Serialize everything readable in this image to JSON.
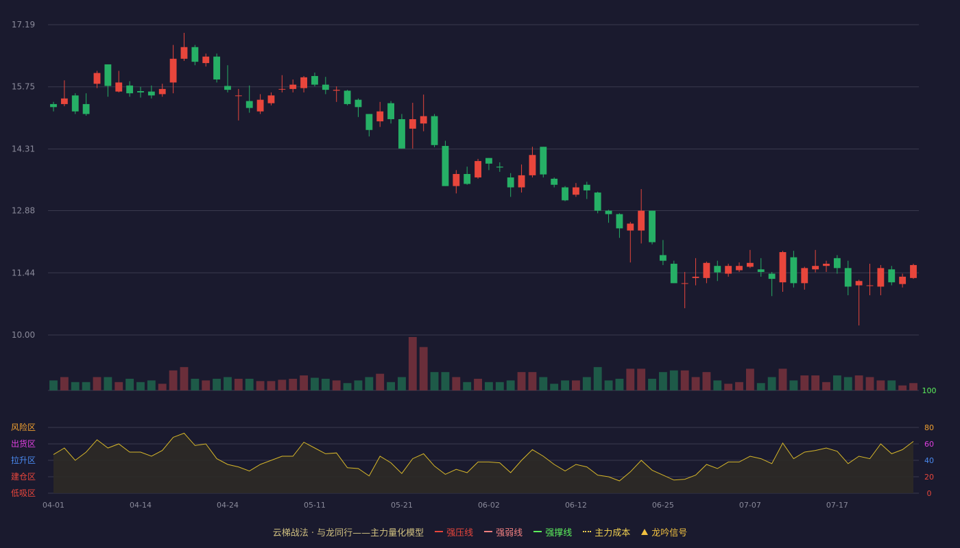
{
  "colors": {
    "background": "#1a1a2e",
    "up": "#e8463c",
    "down": "#26b066",
    "grid": "#3a3a4e",
    "axis_text": "#8a8a9a",
    "vol_up": "#6a2e3a",
    "vol_down": "#1e5a48",
    "osc_line": "#d8b82a",
    "osc_fill": "#2e2a26"
  },
  "legend": {
    "title": "云梯战法 · 与龙同行——主力量化模型",
    "items": [
      {
        "label": "强压线",
        "color": "#e8463c",
        "style": "solid"
      },
      {
        "label": "强弱线",
        "color": "#f08080",
        "style": "dashed"
      },
      {
        "label": "强撑线",
        "color": "#5cf05c",
        "style": "solid"
      },
      {
        "label": "主力成本",
        "color": "#f0d050",
        "style": "dotted"
      },
      {
        "label": "龙吟信号",
        "color": "#f0c040",
        "style": "triangle"
      }
    ]
  },
  "chart_data": [
    {
      "type": "candlestick",
      "y_ticks": [
        "17.19",
        "15.75",
        "14.31",
        "12.88",
        "11.44",
        "10.00"
      ],
      "ylim": [
        10.0,
        17.19
      ],
      "x_tick_labels": [
        "04-01",
        "04-14",
        "04-24",
        "05-11",
        "05-21",
        "06-02",
        "06-12",
        "06-25",
        "07-07",
        "07-17"
      ],
      "candles": [
        {
          "d": "04-01",
          "o": 15.35,
          "c": 15.28,
          "h": 15.4,
          "l": 15.18
        },
        {
          "d": "",
          "o": 15.35,
          "c": 15.48,
          "h": 15.9,
          "l": 15.3
        },
        {
          "d": "",
          "o": 15.55,
          "c": 15.18,
          "h": 15.6,
          "l": 15.12
        },
        {
          "d": "",
          "o": 15.35,
          "c": 15.12,
          "h": 15.6,
          "l": 15.08
        },
        {
          "d": "",
          "o": 15.82,
          "c": 16.07,
          "h": 16.12,
          "l": 15.72
        },
        {
          "d": "",
          "o": 16.27,
          "c": 15.77,
          "h": 16.27,
          "l": 15.52
        },
        {
          "d": "",
          "o": 15.64,
          "c": 15.85,
          "h": 16.12,
          "l": 15.62
        },
        {
          "d": "",
          "o": 15.78,
          "c": 15.6,
          "h": 15.88,
          "l": 15.52
        },
        {
          "d": "04-14",
          "o": 15.65,
          "c": 15.62,
          "h": 15.75,
          "l": 15.5
        },
        {
          "d": "",
          "o": 15.64,
          "c": 15.55,
          "h": 15.78,
          "l": 15.48
        },
        {
          "d": "",
          "o": 15.58,
          "c": 15.7,
          "h": 15.82,
          "l": 15.52
        },
        {
          "d": "",
          "o": 15.85,
          "c": 16.4,
          "h": 16.72,
          "l": 15.6
        },
        {
          "d": "",
          "o": 16.4,
          "c": 16.67,
          "h": 17.0,
          "l": 16.35
        },
        {
          "d": "",
          "o": 16.67,
          "c": 16.33,
          "h": 16.72,
          "l": 16.25
        },
        {
          "d": "",
          "o": 16.3,
          "c": 16.45,
          "h": 16.52,
          "l": 16.22
        },
        {
          "d": "",
          "o": 16.45,
          "c": 15.92,
          "h": 16.52,
          "l": 15.85
        },
        {
          "d": "04-24",
          "o": 15.77,
          "c": 15.68,
          "h": 16.25,
          "l": 15.62
        },
        {
          "d": "",
          "o": 15.55,
          "c": 15.55,
          "h": 15.7,
          "l": 14.97
        },
        {
          "d": "",
          "o": 15.42,
          "c": 15.26,
          "h": 15.78,
          "l": 15.15
        },
        {
          "d": "",
          "o": 15.18,
          "c": 15.45,
          "h": 15.58,
          "l": 15.12
        },
        {
          "d": "",
          "o": 15.37,
          "c": 15.55,
          "h": 15.62,
          "l": 15.32
        },
        {
          "d": "",
          "o": 15.7,
          "c": 15.7,
          "h": 16.02,
          "l": 15.62
        },
        {
          "d": "",
          "o": 15.7,
          "c": 15.8,
          "h": 15.92,
          "l": 15.62
        },
        {
          "d": "",
          "o": 15.72,
          "c": 15.97,
          "h": 16.0,
          "l": 15.62
        },
        {
          "d": "05-11",
          "o": 16.0,
          "c": 15.8,
          "h": 16.08,
          "l": 15.76
        },
        {
          "d": "",
          "o": 15.8,
          "c": 15.68,
          "h": 15.98,
          "l": 15.58
        },
        {
          "d": "",
          "o": 15.66,
          "c": 15.68,
          "h": 15.76,
          "l": 15.4
        },
        {
          "d": "",
          "o": 15.66,
          "c": 15.35,
          "h": 15.68,
          "l": 15.32
        },
        {
          "d": "",
          "o": 15.45,
          "c": 15.28,
          "h": 15.48,
          "l": 15.05
        },
        {
          "d": "",
          "o": 15.12,
          "c": 14.75,
          "h": 15.12,
          "l": 14.6
        },
        {
          "d": "",
          "o": 14.95,
          "c": 15.18,
          "h": 15.4,
          "l": 14.82
        },
        {
          "d": "",
          "o": 15.37,
          "c": 15.0,
          "h": 15.42,
          "l": 14.9
        },
        {
          "d": "05-21",
          "o": 15.0,
          "c": 14.32,
          "h": 15.12,
          "l": 14.32
        },
        {
          "d": "",
          "o": 14.78,
          "c": 15.0,
          "h": 15.38,
          "l": 14.32
        },
        {
          "d": "",
          "o": 14.9,
          "c": 15.07,
          "h": 15.57,
          "l": 14.72
        },
        {
          "d": "",
          "o": 15.07,
          "c": 14.4,
          "h": 15.12,
          "l": 14.35
        },
        {
          "d": "",
          "o": 14.38,
          "c": 13.45,
          "h": 14.5,
          "l": 13.45
        },
        {
          "d": "",
          "o": 13.45,
          "c": 13.73,
          "h": 13.82,
          "l": 13.28
        },
        {
          "d": "",
          "o": 13.73,
          "c": 13.5,
          "h": 13.9,
          "l": 13.48
        },
        {
          "d": "",
          "o": 13.65,
          "c": 14.03,
          "h": 14.08,
          "l": 13.62
        },
        {
          "d": "06-02",
          "o": 14.1,
          "c": 13.97,
          "h": 14.1,
          "l": 13.82
        },
        {
          "d": "",
          "o": 13.9,
          "c": 13.88,
          "h": 14.0,
          "l": 13.78
        },
        {
          "d": "",
          "o": 13.65,
          "c": 13.42,
          "h": 13.75,
          "l": 13.2
        },
        {
          "d": "",
          "o": 13.42,
          "c": 13.7,
          "h": 13.95,
          "l": 13.3
        },
        {
          "d": "",
          "o": 13.7,
          "c": 14.17,
          "h": 14.36,
          "l": 13.65
        },
        {
          "d": "",
          "o": 14.36,
          "c": 13.72,
          "h": 14.36,
          "l": 13.65
        },
        {
          "d": "",
          "o": 13.62,
          "c": 13.48,
          "h": 13.65,
          "l": 13.42
        },
        {
          "d": "",
          "o": 13.42,
          "c": 13.12,
          "h": 13.45,
          "l": 13.1
        },
        {
          "d": "06-12",
          "o": 13.25,
          "c": 13.42,
          "h": 13.52,
          "l": 13.2
        },
        {
          "d": "",
          "o": 13.48,
          "c": 13.35,
          "h": 13.55,
          "l": 13.15
        },
        {
          "d": "",
          "o": 13.3,
          "c": 12.88,
          "h": 13.32,
          "l": 12.82
        },
        {
          "d": "",
          "o": 12.88,
          "c": 12.8,
          "h": 12.9,
          "l": 12.6
        },
        {
          "d": "",
          "o": 12.8,
          "c": 12.47,
          "h": 12.82,
          "l": 12.25
        },
        {
          "d": "",
          "o": 12.42,
          "c": 12.58,
          "h": 12.62,
          "l": 11.68
        },
        {
          "d": "",
          "o": 12.42,
          "c": 12.88,
          "h": 13.38,
          "l": 12.12
        },
        {
          "d": "",
          "o": 12.88,
          "c": 12.15,
          "h": 12.88,
          "l": 12.1
        },
        {
          "d": "06-25",
          "o": 11.85,
          "c": 11.72,
          "h": 12.2,
          "l": 11.62
        },
        {
          "d": "",
          "o": 11.65,
          "c": 11.2,
          "h": 11.72,
          "l": 11.2
        },
        {
          "d": "",
          "o": 11.2,
          "c": 11.2,
          "h": 11.46,
          "l": 10.62
        },
        {
          "d": "",
          "o": 11.32,
          "c": 11.35,
          "h": 11.78,
          "l": 11.15
        },
        {
          "d": "",
          "o": 11.32,
          "c": 11.67,
          "h": 11.7,
          "l": 11.2
        },
        {
          "d": "",
          "o": 11.6,
          "c": 11.45,
          "h": 11.72,
          "l": 11.25
        },
        {
          "d": "",
          "o": 11.42,
          "c": 11.6,
          "h": 11.65,
          "l": 11.35
        },
        {
          "d": "",
          "o": 11.5,
          "c": 11.6,
          "h": 11.68,
          "l": 11.46
        },
        {
          "d": "07-07",
          "o": 11.58,
          "c": 11.67,
          "h": 11.97,
          "l": 11.55
        },
        {
          "d": "",
          "o": 11.52,
          "c": 11.46,
          "h": 11.78,
          "l": 11.35
        },
        {
          "d": "",
          "o": 11.42,
          "c": 11.3,
          "h": 11.46,
          "l": 10.9
        },
        {
          "d": "",
          "o": 11.22,
          "c": 11.92,
          "h": 11.95,
          "l": 11.0
        },
        {
          "d": "",
          "o": 11.8,
          "c": 11.2,
          "h": 11.95,
          "l": 11.1
        },
        {
          "d": "",
          "o": 11.2,
          "c": 11.55,
          "h": 11.58,
          "l": 11.05
        },
        {
          "d": "",
          "o": 11.52,
          "c": 11.6,
          "h": 11.97,
          "l": 11.45
        },
        {
          "d": "",
          "o": 11.6,
          "c": 11.65,
          "h": 11.72,
          "l": 11.46
        },
        {
          "d": "07-17",
          "o": 11.78,
          "c": 11.55,
          "h": 11.85,
          "l": 11.42
        },
        {
          "d": "",
          "o": 11.55,
          "c": 11.12,
          "h": 11.72,
          "l": 10.92
        },
        {
          "d": "",
          "o": 11.15,
          "c": 11.25,
          "h": 11.28,
          "l": 10.22
        },
        {
          "d": "",
          "o": 11.15,
          "c": 11.15,
          "h": 11.65,
          "l": 10.92
        },
        {
          "d": "",
          "o": 11.12,
          "c": 11.55,
          "h": 11.62,
          "l": 10.92
        },
        {
          "d": "",
          "o": 11.52,
          "c": 11.22,
          "h": 11.6,
          "l": 11.15
        },
        {
          "d": "",
          "o": 11.18,
          "c": 11.35,
          "h": 11.42,
          "l": 11.1
        },
        {
          "d": "",
          "o": 11.32,
          "c": 11.62,
          "h": 11.65,
          "l": 11.3
        }
      ],
      "volume": [
        3,
        4,
        2.5,
        2.5,
        4,
        4,
        2.5,
        3.5,
        2.5,
        3,
        2,
        6,
        7,
        3.5,
        3,
        3.5,
        4,
        3.5,
        3.5,
        2.8,
        2.8,
        3.2,
        3.5,
        4.5,
        3.8,
        3.5,
        3,
        2.2,
        3,
        4,
        5,
        2.5,
        4,
        16,
        13,
        5.5,
        5.5,
        4,
        2.5,
        3.5,
        2.5,
        2.5,
        3,
        5.5,
        5.5,
        4,
        2,
        3,
        3,
        4,
        7,
        3,
        3.5,
        6.5,
        6.5,
        3.5,
        5.5,
        6,
        6,
        4,
        5.5,
        3,
        2,
        2.5,
        6.5,
        2.2,
        4,
        6.5,
        3,
        4.5,
        4.5,
        2.5,
        4.5,
        4,
        4.5,
        4,
        3,
        3,
        1.5,
        2.2
      ]
    },
    {
      "type": "area",
      "y_ticks_right": [
        "100",
        "80",
        "60",
        "40",
        "20",
        "0"
      ],
      "ylim": [
        0,
        100
      ],
      "zone_labels": [
        {
          "label": "风险区",
          "color": "#f0a030"
        },
        {
          "label": "出货区",
          "color": "#e040e0"
        },
        {
          "label": "拉升区",
          "color": "#4a8af0"
        },
        {
          "label": "建仓区",
          "color": "#e8463c"
        },
        {
          "label": "低吸区",
          "color": "#e8463c"
        }
      ],
      "right_tick_colors": [
        "#5cf05c",
        "#f0a030",
        "#e040e0",
        "#4a8af0",
        "#e8463c",
        "#e8463c"
      ],
      "values": [
        47,
        55,
        40,
        50,
        65,
        55,
        60,
        50,
        50,
        45,
        52,
        68,
        73,
        58,
        60,
        42,
        35,
        32,
        27,
        35,
        40,
        45,
        45,
        62,
        55,
        48,
        49,
        31,
        30,
        21,
        45,
        37,
        24,
        42,
        48,
        33,
        23,
        29,
        25,
        38,
        38,
        37,
        25,
        40,
        53,
        45,
        35,
        27,
        35,
        32,
        22,
        20,
        15,
        26,
        40,
        28,
        22,
        16,
        17,
        22,
        35,
        30,
        38,
        38,
        45,
        42,
        36,
        61,
        42,
        50,
        52,
        55,
        51,
        36,
        45,
        42,
        60,
        48,
        53,
        63
      ],
      "x_tick_labels": [
        "04-01",
        "04-14",
        "04-24",
        "05-11",
        "05-21",
        "06-02",
        "06-12",
        "06-25",
        "07-07",
        "07-17"
      ]
    }
  ]
}
